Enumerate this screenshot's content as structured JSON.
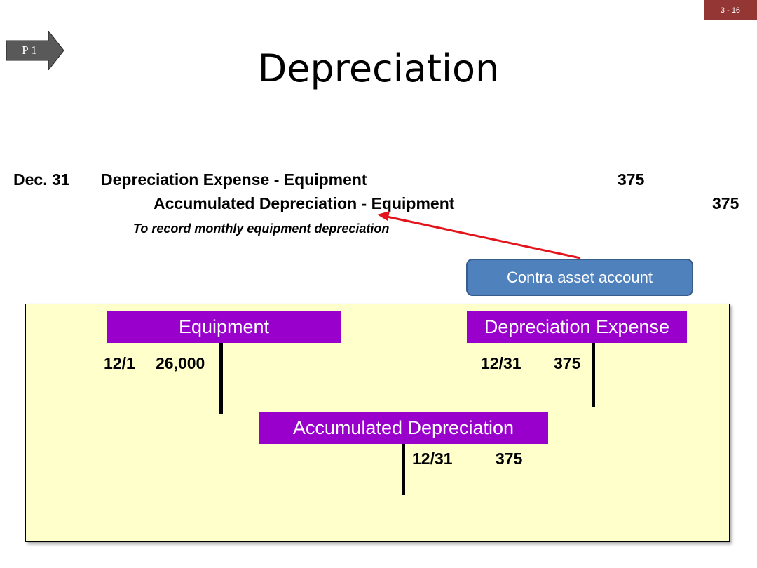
{
  "slide": {
    "page_number": "3 - 16",
    "objective_tag": "P 1",
    "title": "Depreciation"
  },
  "journal_entry": {
    "date": "Dec. 31",
    "debit_account": "Depreciation Expense - Equipment",
    "debit_amount": "375",
    "credit_account": "Accumulated Depreciation - Equipment",
    "credit_amount": "375",
    "memo": "To record monthly equipment depreciation"
  },
  "callout": {
    "text": "Contra asset account"
  },
  "t_accounts": {
    "equipment": {
      "name": "Equipment",
      "debit_date": "12/1",
      "debit_amount": "26,000"
    },
    "depreciation_expense": {
      "name": "Depreciation Expense",
      "debit_date": "12/31",
      "debit_amount": "375"
    },
    "accumulated_depreciation": {
      "name": "Accumulated Depreciation",
      "credit_date": "12/31",
      "credit_amount": "375"
    }
  },
  "colors": {
    "page_number_bg": "#943634",
    "account_header_bg": "#9900cc",
    "panel_bg": "#ffffcc",
    "callout_bg": "#4f81bd",
    "arrow": "#e3141b"
  }
}
